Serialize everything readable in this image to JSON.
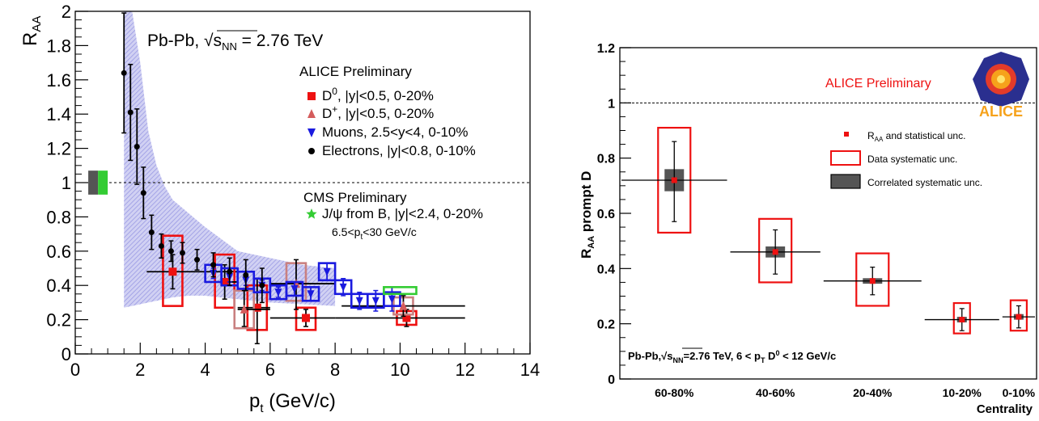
{
  "chart_data": [
    {
      "type": "scatter",
      "title": "",
      "system_label": "Pb-Pb, √s",
      "system_sub": "NN",
      "system_energy": " = 2.76 TeV",
      "ylabel": "R",
      "ylabel_sub": "AA",
      "xlabel": "p",
      "xlabel_sub": "t",
      "xlabel_unit": " (GeV/c)",
      "xlim": [
        0,
        14
      ],
      "ylim": [
        0,
        2
      ],
      "x_ticks": [
        "0",
        "2",
        "4",
        "6",
        "8",
        "10",
        "12",
        "14"
      ],
      "y_ticks": [
        "0",
        "0.2",
        "0.4",
        "0.6",
        "0.8",
        "1",
        "1.2",
        "1.4",
        "1.6",
        "1.8",
        "2"
      ],
      "reference_line": 1,
      "legend": {
        "group1_title": "ALICE Preliminary",
        "group2_title": "CMS Preliminary",
        "cms_range": "6.5<p",
        "cms_range_sub": "t",
        "cms_range_tail": "<30 GeV/c",
        "entries": [
          {
            "label": "D",
            "sup": "0",
            "tail": ", |y|<0.5, 0-20%",
            "color": "#ee1111",
            "marker": "square"
          },
          {
            "label": "D",
            "sup": "+",
            "tail": ", |y|<0.5, 0-20%",
            "color": "#d45c5c",
            "marker": "triangle-up"
          },
          {
            "label": "Muons, 2.5<y<4, 0-10%",
            "sup": "",
            "tail": "",
            "color": "#1a1adf",
            "marker": "triangle-down"
          },
          {
            "label": "Electrons, |y|<0.8, 0-10%",
            "sup": "",
            "tail": "",
            "color": "#000000",
            "marker": "circle"
          },
          {
            "label": "J/ψ from B, |y|<2.4, 0-20%",
            "sup": "",
            "tail": "",
            "color": "#33cc33",
            "marker": "star"
          }
        ]
      },
      "norm_boxes": [
        {
          "x": 0.55,
          "color": "#555555",
          "lo": 0.93,
          "hi": 1.07
        },
        {
          "x": 0.85,
          "color": "#33cc33",
          "lo": 0.93,
          "hi": 1.07
        }
      ],
      "electron_band": {
        "color": "#8f8fe0",
        "x": [
          1.5,
          1.75,
          2.0,
          2.25,
          2.5,
          2.75,
          3.0,
          3.5,
          4.0,
          5.0,
          6.0,
          7.0,
          8.0
        ],
        "lo": [
          0.27,
          0.28,
          0.29,
          0.3,
          0.31,
          0.32,
          0.33,
          0.34,
          0.34,
          0.32,
          0.3,
          0.29,
          0.28
        ],
        "hi": [
          2.0,
          2.0,
          1.7,
          1.3,
          1.1,
          0.98,
          0.9,
          0.82,
          0.74,
          0.6,
          0.56,
          0.52,
          0.5
        ]
      },
      "series": [
        {
          "name": "D0",
          "color": "#ee1111",
          "x": [
            3.0,
            4.6,
            5.6,
            7.1,
            10.2
          ],
          "y": [
            0.48,
            0.42,
            0.27,
            0.21,
            0.21
          ],
          "xerr_lo": [
            0.8,
            0.6,
            0.6,
            1.1,
            2.2
          ],
          "xerr_hi": [
            2.0,
            0.4,
            0.4,
            0.9,
            1.8
          ],
          "stat_lo": [
            0.1,
            0.1,
            0.21,
            0.05,
            0.05
          ],
          "stat_hi": [
            0.1,
            0.1,
            0.17,
            0.05,
            0.05
          ],
          "sys_lo": [
            0.2,
            0.15,
            0.13,
            0.07,
            0.04
          ],
          "sys_hi": [
            0.21,
            0.16,
            0.13,
            0.06,
            0.04
          ]
        },
        {
          "name": "D+",
          "color": "#d45c5c",
          "x": [
            5.2,
            6.8,
            10.1
          ],
          "y": [
            0.26,
            0.41,
            0.28
          ],
          "xerr_lo": [
            0.2,
            0.8,
            1.9
          ],
          "xerr_hi": [
            0.8,
            1.2,
            1.9
          ],
          "stat_lo": [
            0.1,
            0.15,
            0.06
          ],
          "stat_hi": [
            0.11,
            0.14,
            0.06
          ],
          "sys_lo": [
            0.11,
            0.1,
            0.05
          ],
          "sys_hi": [
            0.11,
            0.12,
            0.05
          ]
        },
        {
          "name": "Muons",
          "color": "#1a1adf",
          "x": [
            4.25,
            4.75,
            5.25,
            5.75,
            6.25,
            6.75,
            7.25,
            7.75,
            8.25,
            8.75,
            9.25,
            9.75
          ],
          "y": [
            0.47,
            0.45,
            0.43,
            0.4,
            0.36,
            0.38,
            0.35,
            0.48,
            0.39,
            0.31,
            0.31,
            0.32
          ],
          "stat_lo": [
            0.03,
            0.03,
            0.03,
            0.03,
            0.03,
            0.04,
            0.04,
            0.05,
            0.05,
            0.05,
            0.06,
            0.07
          ],
          "stat_hi": [
            0.03,
            0.03,
            0.03,
            0.03,
            0.03,
            0.04,
            0.04,
            0.05,
            0.05,
            0.05,
            0.06,
            0.07
          ],
          "sys_lo": [
            0.05,
            0.05,
            0.05,
            0.04,
            0.04,
            0.04,
            0.04,
            0.05,
            0.04,
            0.04,
            0.04,
            0.04
          ],
          "sys_hi": [
            0.05,
            0.05,
            0.05,
            0.04,
            0.04,
            0.04,
            0.04,
            0.05,
            0.04,
            0.04,
            0.04,
            0.04
          ]
        },
        {
          "name": "Electrons",
          "color": "#000000",
          "x": [
            1.5,
            1.7,
            1.9,
            2.1,
            2.35,
            2.65,
            2.95,
            3.3,
            3.75,
            4.25,
            4.75,
            5.25,
            5.75
          ],
          "y": [
            1.64,
            1.41,
            1.21,
            0.94,
            0.71,
            0.63,
            0.6,
            0.59,
            0.55,
            0.52,
            0.48,
            0.46,
            0.4
          ],
          "stat_lo": [
            0.35,
            0.28,
            0.22,
            0.15,
            0.1,
            0.07,
            0.06,
            0.06,
            0.06,
            0.07,
            0.08,
            0.09,
            0.1
          ],
          "stat_hi": [
            0.35,
            0.28,
            0.22,
            0.15,
            0.1,
            0.07,
            0.06,
            0.06,
            0.06,
            0.07,
            0.08,
            0.09,
            0.1
          ]
        },
        {
          "name": "J/psi from B",
          "color": "#33cc33",
          "x": [
            10.0
          ],
          "y": [
            0.37
          ],
          "xerr_lo": [
            0.5
          ],
          "xerr_hi": [
            0.5
          ],
          "sys_lo": [
            0.02
          ],
          "sys_hi": [
            0.02
          ]
        }
      ]
    },
    {
      "type": "scatter",
      "title": "",
      "logo_text": "ALICE",
      "prelim_label": "ALICE Preliminary",
      "ylabel": "R",
      "ylabel_sub": "AA",
      "ylabel_tail": " prompt D",
      "xlabel": "Centrality",
      "ylim": [
        0,
        1.2
      ],
      "y_ticks": [
        "0",
        "0.2",
        "0.4",
        "0.6",
        "0.8",
        "1",
        "1.2"
      ],
      "categories": [
        "60-80%",
        "40-60%",
        "20-40%",
        "10-20%",
        "0-10%"
      ],
      "reference_line": 1,
      "footer": {
        "pre": "Pb-Pb,√s",
        "sub": "NN",
        "mid": "=2.76 TeV, 6 < p",
        "sub2": "T",
        "mid2": " D",
        "sup": "0",
        "tail": " < 12 GeV/c"
      },
      "legend": {
        "entries": [
          {
            "label": "R",
            "sub": "AA",
            "tail": " and statistical unc.",
            "marker": "point",
            "color": "#ee1111"
          },
          {
            "label": "Data systematic unc.",
            "sub": "",
            "tail": "",
            "marker": "open-box",
            "color": "#ee1111"
          },
          {
            "label": "Correlated systematic unc.",
            "sub": "",
            "tail": "",
            "marker": "filled-box",
            "color": "#555555"
          }
        ]
      },
      "bin_edges": [
        0,
        70,
        130,
        195,
        245,
        268
      ],
      "y": [
        0.72,
        0.46,
        0.355,
        0.215,
        0.225
      ],
      "stat_lo": [
        0.15,
        0.08,
        0.05,
        0.04,
        0.04
      ],
      "stat_hi": [
        0.14,
        0.08,
        0.05,
        0.04,
        0.04
      ],
      "sys_lo": [
        0.19,
        0.11,
        0.09,
        0.05,
        0.05
      ],
      "sys_hi": [
        0.19,
        0.12,
        0.1,
        0.06,
        0.06
      ],
      "corr_lo": [
        0.04,
        0.02,
        0.01,
        0.01,
        0.01
      ],
      "corr_hi": [
        0.04,
        0.02,
        0.01,
        0.01,
        0.01
      ]
    }
  ]
}
